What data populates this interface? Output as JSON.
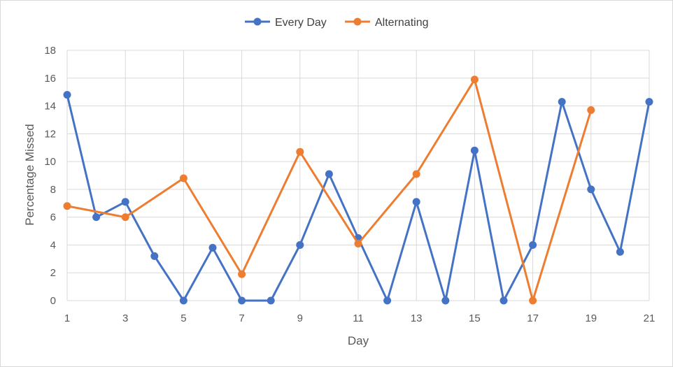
{
  "chart_data": {
    "type": "line",
    "title": "",
    "xlabel": "Day",
    "ylabel": "Percentage Missed",
    "xlim": [
      1,
      21
    ],
    "ylim": [
      0,
      18
    ],
    "x_ticks": [
      1,
      3,
      5,
      7,
      9,
      11,
      13,
      15,
      17,
      19,
      21
    ],
    "y_ticks": [
      0,
      2,
      4,
      6,
      8,
      10,
      12,
      14,
      16,
      18
    ],
    "grid": true,
    "legend_position": "top",
    "series": [
      {
        "name": "Every Day",
        "color": "#4472C4",
        "x": [
          1,
          2,
          3,
          4,
          5,
          6,
          7,
          8,
          9,
          10,
          11,
          12,
          13,
          14,
          15,
          16,
          17,
          18,
          19,
          20,
          21
        ],
        "y": [
          14.8,
          6.0,
          7.1,
          3.2,
          0.0,
          3.8,
          0.0,
          0.0,
          4.0,
          9.1,
          4.5,
          0.0,
          7.1,
          0.0,
          10.8,
          0.0,
          4.0,
          14.3,
          8.0,
          3.5,
          14.3
        ]
      },
      {
        "name": "Alternating",
        "color": "#ED7D31",
        "x": [
          1,
          3,
          5,
          7,
          9,
          11,
          13,
          15,
          17,
          19
        ],
        "y": [
          6.8,
          6.0,
          8.8,
          1.9,
          10.7,
          4.1,
          9.1,
          15.9,
          0.0,
          13.7
        ]
      }
    ]
  }
}
